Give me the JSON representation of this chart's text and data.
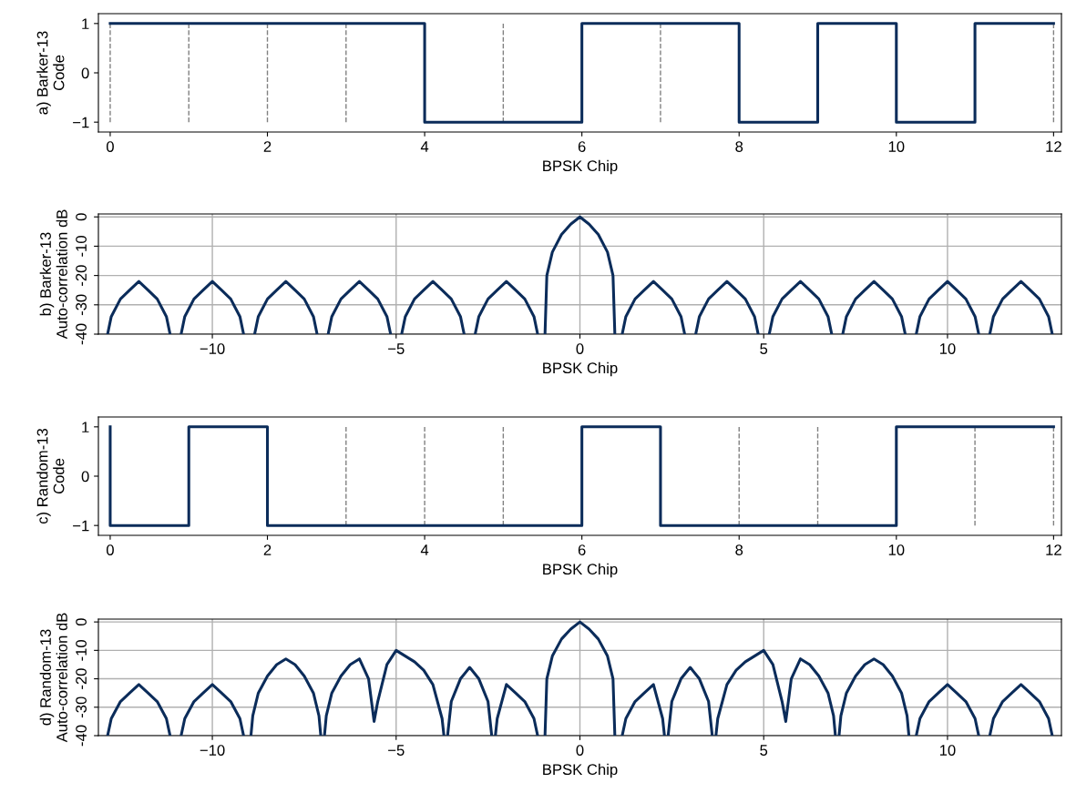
{
  "chart_data": [
    {
      "type": "step",
      "xlabel": "BPSK Chip",
      "ylabel": "a) Barker-13\nCode",
      "x": [
        0,
        1,
        2,
        3,
        4,
        5,
        6,
        7,
        8,
        9,
        10,
        11,
        12
      ],
      "series": [
        {
          "color": "#0b2c5a",
          "values": [
            1,
            1,
            1,
            1,
            1,
            -1,
            -1,
            1,
            1,
            -1,
            1,
            -1,
            1
          ]
        }
      ],
      "xlim": [
        -0.15,
        12.1
      ],
      "ylim": [
        -1.2,
        1.2
      ],
      "xticks": [
        0,
        2,
        4,
        6,
        8,
        10,
        12
      ],
      "yticks": [
        {
          "value": -1,
          "label": "−1"
        },
        0,
        1
      ],
      "grid": false,
      "line_style": "solid",
      "marker": "none",
      "ref_lines": [
        {
          "axis": "x",
          "value": 0,
          "color": "#808080",
          "line_style": "dashed"
        },
        {
          "axis": "x",
          "value": 1,
          "color": "#808080",
          "line_style": "dashed"
        },
        {
          "axis": "x",
          "value": 2,
          "color": "#808080",
          "line_style": "dashed"
        },
        {
          "axis": "x",
          "value": 3,
          "color": "#808080",
          "line_style": "dashed"
        },
        {
          "axis": "x",
          "value": 5,
          "color": "#808080",
          "line_style": "dashed"
        },
        {
          "axis": "x",
          "value": 7,
          "color": "#808080",
          "line_style": "dashed"
        },
        {
          "axis": "x",
          "value": 12,
          "color": "#808080",
          "line_style": "dashed"
        }
      ]
    },
    {
      "type": "line",
      "xlabel": "BPSK Chip",
      "ylabel": "b) Barker-13\nAuto-correlation dB",
      "x": [
        -12.85,
        -12.75,
        -12.5,
        -12.25,
        -12,
        -11.75,
        -11.5,
        -11.25,
        -11.15,
        -11,
        -10.85,
        -10.75,
        -10.5,
        -10.25,
        -10,
        -9.75,
        -9.5,
        -9.25,
        -9.15,
        -9,
        -8.85,
        -8.75,
        -8.5,
        -8.25,
        -8,
        -7.75,
        -7.5,
        -7.25,
        -7.15,
        -7,
        -6.85,
        -6.75,
        -6.5,
        -6.25,
        -6,
        -5.75,
        -5.5,
        -5.25,
        -5.15,
        -5,
        -4.85,
        -4.75,
        -4.5,
        -4.25,
        -4,
        -3.75,
        -3.5,
        -3.25,
        -3.15,
        -3,
        -2.85,
        -2.75,
        -2.5,
        -2.25,
        -2,
        -1.75,
        -1.5,
        -1.25,
        -1.15,
        -1,
        -0.95,
        -0.9,
        -0.75,
        -0.5,
        -0.25,
        0,
        0.25,
        0.5,
        0.75,
        0.9,
        0.95,
        1,
        1.15,
        1.25,
        1.5,
        1.75,
        2,
        2.25,
        2.5,
        2.75,
        2.85,
        3,
        3.15,
        3.25,
        3.5,
        3.75,
        4,
        4.25,
        4.5,
        4.75,
        4.85,
        5,
        5.15,
        5.25,
        5.5,
        5.75,
        6,
        6.25,
        6.5,
        6.75,
        6.85,
        7,
        7.15,
        7.25,
        7.5,
        7.75,
        8,
        8.25,
        8.5,
        8.75,
        8.85,
        9,
        9.15,
        9.25,
        9.5,
        9.75,
        10,
        10.25,
        10.5,
        10.75,
        10.85,
        11,
        11.15,
        11.25,
        11.5,
        11.75,
        12,
        12.25,
        12.5,
        12.75,
        12.85
      ],
      "series": [
        {
          "color": "#0b2c5a",
          "values": [
            -40,
            -34,
            -28,
            -25,
            -22,
            -25,
            -28,
            -34,
            -40,
            null,
            -40,
            -34,
            -28,
            -25,
            -22,
            -25,
            -28,
            -34,
            -40,
            null,
            -40,
            -34,
            -28,
            -25,
            -22,
            -25,
            -28,
            -34,
            -40,
            null,
            -40,
            -34,
            -28,
            -25,
            -22,
            -25,
            -28,
            -34,
            -40,
            null,
            -40,
            -34,
            -28,
            -25,
            -22,
            -25,
            -28,
            -34,
            -40,
            null,
            -40,
            -34,
            -28,
            -25,
            -22,
            -25,
            -28,
            -34,
            -40,
            null,
            -40,
            -20,
            -12,
            -6,
            -2.5,
            0,
            -2.5,
            -6,
            -12,
            -20,
            -40,
            null,
            -40,
            -34,
            -28,
            -25,
            -22,
            -25,
            -28,
            -34,
            -40,
            null,
            -40,
            -34,
            -28,
            -25,
            -22,
            -25,
            -28,
            -34,
            -40,
            null,
            -40,
            -34,
            -28,
            -25,
            -22,
            -25,
            -28,
            -34,
            -40,
            null,
            -40,
            -34,
            -28,
            -25,
            -22,
            -25,
            -28,
            -34,
            -40,
            null,
            -40,
            -34,
            -28,
            -25,
            -22,
            -25,
            -28,
            -34,
            -40,
            null,
            -40,
            -34,
            -28,
            -25,
            -22,
            -25,
            -28,
            -34,
            -40
          ]
        }
      ],
      "xlim": [
        -13.1,
        13.1
      ],
      "ylim": [
        -40,
        1
      ],
      "xticks": [
        -10,
        -5,
        0,
        5,
        10
      ],
      "yticks": [
        {
          "value": -40,
          "label": "-40"
        },
        {
          "value": -30,
          "label": "-30"
        },
        {
          "value": -20,
          "label": "-20"
        },
        {
          "value": -10,
          "label": "-10"
        },
        0
      ],
      "grid": true,
      "line_style": "solid",
      "marker": "none"
    },
    {
      "type": "step",
      "xlabel": "BPSK Chip",
      "ylabel": "c) Random-13\nCode",
      "x": [
        0,
        1,
        2,
        3,
        4,
        5,
        6,
        7,
        8,
        9,
        10,
        11,
        12
      ],
      "series": [
        {
          "color": "#0b2c5a",
          "values": [
            1,
            -1,
            1,
            -1,
            -1,
            -1,
            -1,
            1,
            -1,
            -1,
            -1,
            1,
            1
          ]
        }
      ],
      "xlim": [
        -0.15,
        12.1
      ],
      "ylim": [
        -1.2,
        1.2
      ],
      "xticks": [
        0,
        2,
        4,
        6,
        8,
        10,
        12
      ],
      "yticks": [
        {
          "value": -1,
          "label": "−1"
        },
        0,
        1
      ],
      "grid": false,
      "line_style": "solid",
      "marker": "none",
      "ref_lines": [
        {
          "axis": "x",
          "value": 3,
          "color": "#808080",
          "line_style": "dashed"
        },
        {
          "axis": "x",
          "value": 4,
          "color": "#808080",
          "line_style": "dashed"
        },
        {
          "axis": "x",
          "value": 5,
          "color": "#808080",
          "line_style": "dashed"
        },
        {
          "axis": "x",
          "value": 8,
          "color": "#808080",
          "line_style": "dashed"
        },
        {
          "axis": "x",
          "value": 9,
          "color": "#808080",
          "line_style": "dashed"
        },
        {
          "axis": "x",
          "value": 11,
          "color": "#808080",
          "line_style": "dashed"
        },
        {
          "axis": "x",
          "value": 12,
          "color": "#808080",
          "line_style": "dashed"
        }
      ]
    },
    {
      "type": "line",
      "xlabel": "BPSK Chip",
      "ylabel": "d) Random-13\nAuto-correlation dB",
      "x": [
        -12.85,
        -12.75,
        -12.5,
        -12.25,
        -12,
        -11.75,
        -11.5,
        -11.25,
        -11.15,
        -11,
        -10.85,
        -10.75,
        -10.5,
        -10.25,
        -10,
        -9.75,
        -9.5,
        -9.25,
        -9.15,
        -9.05,
        -8.95,
        -8.9,
        -8.75,
        -8.5,
        -8.25,
        -8,
        -7.75,
        -7.5,
        -7.25,
        -7.1,
        -7.05,
        -7,
        -6.95,
        -6.9,
        -6.75,
        -6.5,
        -6.25,
        -6,
        -5.75,
        -5.6,
        -5.5,
        -5.25,
        -5,
        -4.75,
        -4.5,
        -4.25,
        -4,
        -3.75,
        -3.7,
        -3.65,
        -3.6,
        -3.5,
        -3.25,
        -3,
        -2.75,
        -2.5,
        -2.4,
        -2.35,
        -2.3,
        -2.25,
        -2,
        -1.75,
        -1.5,
        -1.25,
        -1.15,
        -1.05,
        -0.95,
        -0.9,
        -0.75,
        -0.5,
        -0.25,
        0,
        0.25,
        0.5,
        0.75,
        0.9,
        0.95,
        1.05,
        1.15,
        1.25,
        1.5,
        1.75,
        2,
        2.25,
        2.3,
        2.35,
        2.4,
        2.5,
        2.75,
        3,
        3.25,
        3.5,
        3.6,
        3.65,
        3.7,
        3.75,
        4,
        4.25,
        4.5,
        4.75,
        5,
        5.25,
        5.5,
        5.6,
        5.75,
        6,
        6.25,
        6.5,
        6.75,
        6.9,
        6.95,
        7,
        7.05,
        7.1,
        7.25,
        7.5,
        7.75,
        8,
        8.25,
        8.5,
        8.75,
        8.9,
        8.95,
        9.05,
        9.15,
        9.25,
        9.5,
        9.75,
        10,
        10.25,
        10.5,
        10.75,
        10.85,
        11,
        11.15,
        11.25,
        11.5,
        11.75,
        12,
        12.25,
        12.5,
        12.75,
        12.85
      ],
      "series": [
        {
          "color": "#0b2c5a",
          "values": [
            -40,
            -34,
            -28,
            -25,
            -22,
            -25,
            -28,
            -34,
            -40,
            null,
            -40,
            -34,
            -28,
            -25,
            -22,
            -25,
            -28,
            -34,
            -40,
            null,
            -40,
            -33,
            -25,
            -19,
            -15,
            -13,
            -15,
            -19,
            -25,
            -33,
            -40,
            null,
            -40,
            -33,
            -25,
            -19,
            -15,
            -13,
            -20,
            -35,
            -28,
            -15,
            -10,
            -12,
            -14,
            -17,
            -22,
            -34,
            -40,
            null,
            -40,
            -28,
            -20,
            -16,
            -20,
            -28,
            -40,
            null,
            -40,
            -34,
            -22,
            -25,
            -28,
            -34,
            -40,
            null,
            -40,
            -20,
            -12,
            -6,
            -2.5,
            0,
            -2.5,
            -6,
            -12,
            -20,
            -40,
            null,
            -40,
            -34,
            -28,
            -25,
            -22,
            -34,
            -40,
            null,
            -40,
            -28,
            -20,
            -16,
            -20,
            -28,
            -40,
            null,
            -40,
            -34,
            -22,
            -17,
            -14,
            -12,
            -10,
            -15,
            -28,
            -35,
            -20,
            -13,
            -15,
            -19,
            -25,
            -33,
            -40,
            null,
            -40,
            -33,
            -25,
            -19,
            -15,
            -13,
            -15,
            -19,
            -25,
            -33,
            -40,
            null,
            -40,
            -34,
            -28,
            -25,
            -22,
            -25,
            -28,
            -34,
            -40,
            null,
            -40,
            -34,
            -28,
            -25,
            -22,
            -25,
            -28,
            -34,
            -40
          ]
        }
      ],
      "xlim": [
        -13.1,
        13.1
      ],
      "ylim": [
        -40,
        1
      ],
      "xticks": [
        -10,
        -5,
        0,
        5,
        10
      ],
      "yticks": [
        {
          "value": -40,
          "label": "-40"
        },
        {
          "value": -30,
          "label": "-30"
        },
        {
          "value": -20,
          "label": "-20"
        },
        {
          "value": -10,
          "label": "-10"
        },
        0
      ],
      "grid": true,
      "line_style": "solid",
      "marker": "none"
    }
  ]
}
